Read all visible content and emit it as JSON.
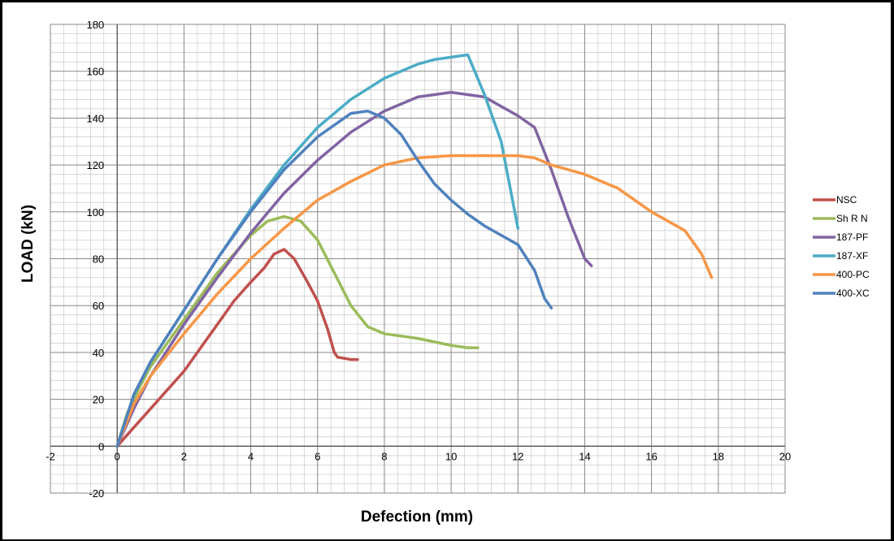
{
  "chart_data": {
    "type": "line",
    "title": "",
    "xlabel": "Defection (mm)",
    "ylabel": "LOAD (kN)",
    "xlim": [
      -2,
      20
    ],
    "ylim": [
      -20,
      180
    ],
    "x_ticks": [
      -2,
      0,
      2,
      4,
      6,
      8,
      10,
      12,
      14,
      16,
      18,
      20
    ],
    "y_ticks": [
      -20,
      0,
      20,
      40,
      60,
      80,
      100,
      120,
      140,
      160,
      180
    ],
    "grid": true,
    "legend": "right",
    "series": [
      {
        "name": "NSC",
        "color": "#c0504d",
        "points": [
          [
            0,
            0
          ],
          [
            0.5,
            8
          ],
          [
            1,
            16
          ],
          [
            1.5,
            24
          ],
          [
            2,
            32
          ],
          [
            2.5,
            42
          ],
          [
            3,
            52
          ],
          [
            3.5,
            62
          ],
          [
            4,
            70
          ],
          [
            4.4,
            76
          ],
          [
            4.7,
            82
          ],
          [
            5,
            84
          ],
          [
            5.3,
            80
          ],
          [
            5.7,
            70
          ],
          [
            6,
            62
          ],
          [
            6.3,
            50
          ],
          [
            6.5,
            40
          ],
          [
            6.6,
            38
          ],
          [
            7,
            37
          ],
          [
            7.2,
            37
          ]
        ]
      },
      {
        "name": "Sh R N",
        "color": "#9bbb59",
        "points": [
          [
            0,
            0
          ],
          [
            0.3,
            14
          ],
          [
            0.7,
            26
          ],
          [
            1,
            34
          ],
          [
            1.5,
            44
          ],
          [
            2,
            54
          ],
          [
            2.5,
            64
          ],
          [
            3,
            74
          ],
          [
            3.5,
            82
          ],
          [
            4,
            90
          ],
          [
            4.5,
            96
          ],
          [
            5,
            98
          ],
          [
            5.5,
            96
          ],
          [
            6,
            88
          ],
          [
            6.5,
            74
          ],
          [
            7,
            60
          ],
          [
            7.5,
            51
          ],
          [
            8,
            48
          ],
          [
            9,
            46
          ],
          [
            10,
            43
          ],
          [
            10.5,
            42
          ],
          [
            10.8,
            42
          ]
        ]
      },
      {
        "name": "187-PF",
        "color": "#8064a2",
        "points": [
          [
            0,
            0
          ],
          [
            0.5,
            16
          ],
          [
            1,
            30
          ],
          [
            2,
            52
          ],
          [
            3,
            72
          ],
          [
            4,
            91
          ],
          [
            5,
            108
          ],
          [
            6,
            122
          ],
          [
            7,
            134
          ],
          [
            8,
            143
          ],
          [
            9,
            149
          ],
          [
            10,
            151
          ],
          [
            11,
            149
          ],
          [
            11.5,
            145
          ],
          [
            12,
            141
          ],
          [
            12.5,
            136
          ],
          [
            13,
            118
          ],
          [
            13.5,
            98
          ],
          [
            14,
            80
          ],
          [
            14.2,
            77
          ]
        ]
      },
      {
        "name": "187-XF",
        "color": "#4bacc6",
        "points": [
          [
            0,
            0
          ],
          [
            0.5,
            22
          ],
          [
            1,
            36
          ],
          [
            2,
            58
          ],
          [
            3,
            80
          ],
          [
            4,
            101
          ],
          [
            5,
            120
          ],
          [
            6,
            136
          ],
          [
            7,
            148
          ],
          [
            8,
            157
          ],
          [
            9,
            163
          ],
          [
            9.5,
            165
          ],
          [
            10,
            166
          ],
          [
            10.5,
            167
          ],
          [
            11,
            150
          ],
          [
            11.5,
            130
          ],
          [
            12,
            93
          ]
        ]
      },
      {
        "name": "400-PC",
        "color": "#f79646",
        "points": [
          [
            0,
            0
          ],
          [
            0.5,
            18
          ],
          [
            1,
            30
          ],
          [
            2,
            48
          ],
          [
            3,
            65
          ],
          [
            4,
            80
          ],
          [
            5,
            93
          ],
          [
            6,
            105
          ],
          [
            7,
            113
          ],
          [
            8,
            120
          ],
          [
            9,
            123
          ],
          [
            10,
            124
          ],
          [
            11,
            124
          ],
          [
            12,
            124
          ],
          [
            12.5,
            123
          ],
          [
            13,
            120
          ],
          [
            14,
            116
          ],
          [
            15,
            110
          ],
          [
            16,
            100
          ],
          [
            17,
            92
          ],
          [
            17.5,
            82
          ],
          [
            17.8,
            72
          ]
        ]
      },
      {
        "name": "400-XC",
        "color": "#4f81bd",
        "points": [
          [
            0,
            0
          ],
          [
            0.5,
            22
          ],
          [
            1,
            36
          ],
          [
            2,
            58
          ],
          [
            3,
            80
          ],
          [
            4,
            100
          ],
          [
            5,
            118
          ],
          [
            6,
            132
          ],
          [
            7,
            142
          ],
          [
            7.5,
            143
          ],
          [
            8,
            140
          ],
          [
            8.5,
            133
          ],
          [
            9,
            122
          ],
          [
            9.5,
            112
          ],
          [
            10,
            105
          ],
          [
            10.5,
            99
          ],
          [
            11,
            94
          ],
          [
            11.5,
            90
          ],
          [
            12,
            86
          ],
          [
            12.5,
            75
          ],
          [
            12.8,
            63
          ],
          [
            13,
            59
          ]
        ]
      }
    ]
  }
}
